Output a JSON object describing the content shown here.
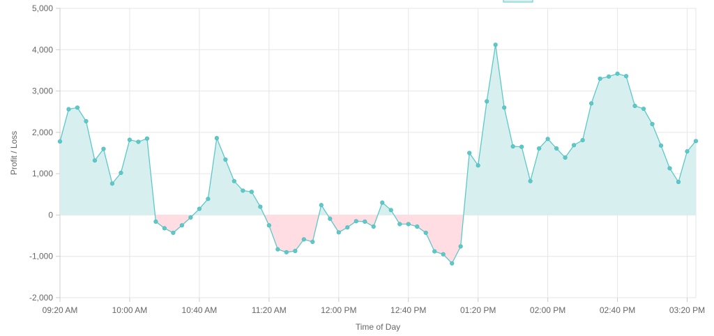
{
  "chart_data": {
    "type": "area",
    "xlabel": "Time of Day",
    "ylabel": "Profit / Loss",
    "ylim": [
      -2000,
      5000
    ],
    "y_ticks": [
      5000,
      4000,
      3000,
      2000,
      1000,
      0,
      -1000,
      -2000
    ],
    "y_tick_labels": [
      "5,000",
      "4,000",
      "3,000",
      "2,000",
      "1,000",
      "0",
      "-1,000",
      "-2,000"
    ],
    "x_range": [
      "09:20",
      "15:25"
    ],
    "x_ticks": [
      "09:20",
      "10:00",
      "10:40",
      "11:20",
      "12:00",
      "12:40",
      "13:20",
      "14:00",
      "14:40",
      "15:20"
    ],
    "x_tick_labels": [
      "09:20 AM",
      "10:00 AM",
      "10:40 AM",
      "11:20 AM",
      "12:00 PM",
      "12:40 PM",
      "01:20 PM",
      "02:00 PM",
      "02:40 PM",
      "03:20 PM"
    ],
    "grid": true,
    "legend_position": "top-right",
    "legend_label": "",
    "positive_color": "#5cc8c8",
    "positive_fill": "#d8efef",
    "negative_color": "#5cc8c8",
    "negative_fill": "#ffdde2",
    "series": [
      {
        "x": [
          "09:20",
          "09:25",
          "09:30",
          "09:35",
          "09:40",
          "09:45",
          "09:50",
          "09:55",
          "10:00",
          "10:05",
          "10:10",
          "10:15",
          "10:20",
          "10:25",
          "10:30",
          "10:35",
          "10:40",
          "10:45",
          "10:50",
          "10:55",
          "11:00",
          "11:05",
          "11:10",
          "11:15",
          "11:20",
          "11:25",
          "11:30",
          "11:35",
          "11:40",
          "11:45",
          "11:50",
          "11:55",
          "12:00",
          "12:05",
          "12:10",
          "12:15",
          "12:20",
          "12:25",
          "12:30",
          "12:35",
          "12:40",
          "12:45",
          "12:50",
          "12:55",
          "13:00",
          "13:05",
          "13:10",
          "13:15",
          "13:20",
          "13:25",
          "13:30",
          "13:35",
          "13:40",
          "13:45",
          "13:50",
          "13:55",
          "14:00",
          "14:05",
          "14:10",
          "14:15",
          "14:20",
          "14:25",
          "14:30",
          "14:35",
          "14:40",
          "14:45",
          "14:50",
          "14:55",
          "15:00",
          "15:05",
          "15:10",
          "15:15",
          "15:20",
          "15:25"
        ],
        "values": [
          1780,
          2560,
          2600,
          2270,
          1320,
          1600,
          760,
          1020,
          1820,
          1770,
          1850,
          -160,
          -320,
          -430,
          -250,
          -60,
          150,
          390,
          1860,
          1340,
          820,
          590,
          560,
          200,
          -250,
          -830,
          -900,
          -870,
          -590,
          -650,
          240,
          -90,
          -420,
          -300,
          -150,
          -160,
          -280,
          300,
          120,
          -220,
          -220,
          -280,
          -430,
          -880,
          -950,
          -1170,
          -760,
          1500,
          1200,
          2750,
          4120,
          2600,
          1660,
          1650,
          820,
          1610,
          1840,
          1610,
          1390,
          1690,
          1810,
          2700,
          3300,
          3350,
          3420,
          3360,
          2640,
          2570,
          2200,
          1680,
          1130,
          800,
          1540,
          1790
        ]
      }
    ]
  }
}
